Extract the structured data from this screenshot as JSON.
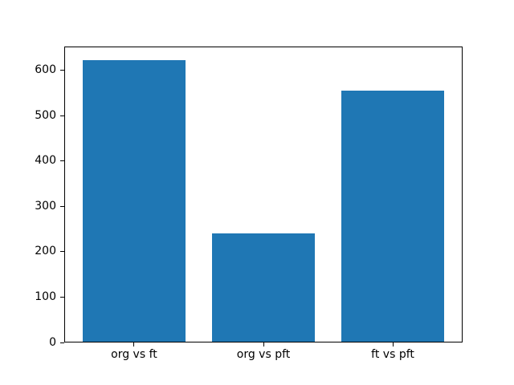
{
  "chart_data": {
    "type": "bar",
    "categories": [
      "org vs ft",
      "org vs pft",
      "ft vs pft"
    ],
    "values": [
      622,
      240,
      555
    ],
    "title": "",
    "xlabel": "",
    "ylabel": "",
    "ylim": [
      0,
      653
    ],
    "yticks": [
      0,
      100,
      200,
      300,
      400,
      500,
      600
    ],
    "bar_color": "#1f77b4",
    "axis_color": "#000000",
    "text_color": "#000000",
    "background_color": "#ffffff",
    "bar_width_fraction": 0.8,
    "grid": false,
    "legend": null
  }
}
